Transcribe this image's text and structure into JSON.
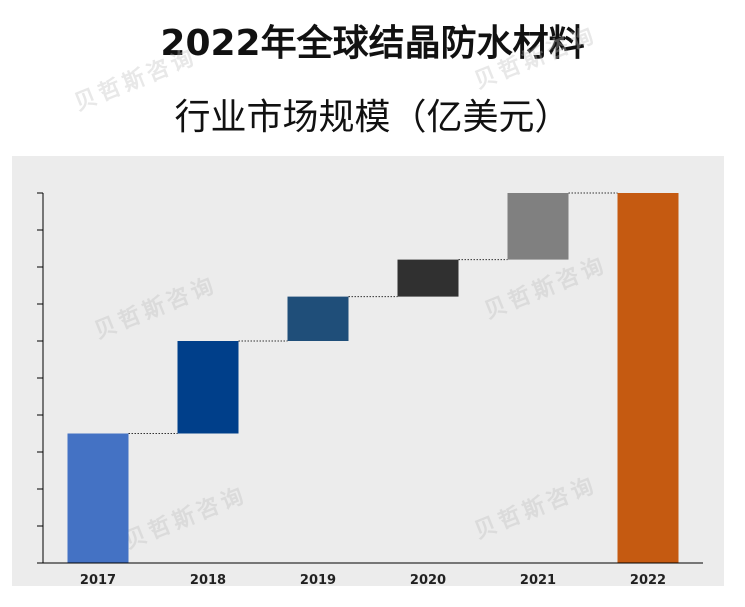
{
  "title": {
    "line1": "2022年全球结晶防水材料",
    "line2": "行业市场规模（亿美元）"
  },
  "watermark": "贝哲斯咨询",
  "colors": {
    "bar_2017": "#4472c4",
    "bar_2018": "#003f8a",
    "bar_2019": "#1f4e79",
    "bar_2020": "#303030",
    "bar_2021": "#808080",
    "bar_2022": "#c55a11",
    "plot_background": "#ececec",
    "axis": "#000000"
  },
  "chart_data": {
    "type": "bar",
    "subtype": "waterfall",
    "title": "2022年全球结晶防水材料行业市场规模（亿美元）",
    "categories": [
      "2017",
      "2018",
      "2019",
      "2020",
      "2021",
      "2022"
    ],
    "base_value": 35,
    "increments": [
      35,
      25,
      12,
      10,
      18
    ],
    "cumulative": [
      35,
      60,
      72,
      82,
      100
    ],
    "total": 100,
    "ylim": [
      0,
      100
    ],
    "y_tick_count": 10,
    "y_tick_labels_visible": false,
    "connector_lines": true,
    "grid": false,
    "legend": "none",
    "xlabel": "",
    "ylabel": ""
  }
}
